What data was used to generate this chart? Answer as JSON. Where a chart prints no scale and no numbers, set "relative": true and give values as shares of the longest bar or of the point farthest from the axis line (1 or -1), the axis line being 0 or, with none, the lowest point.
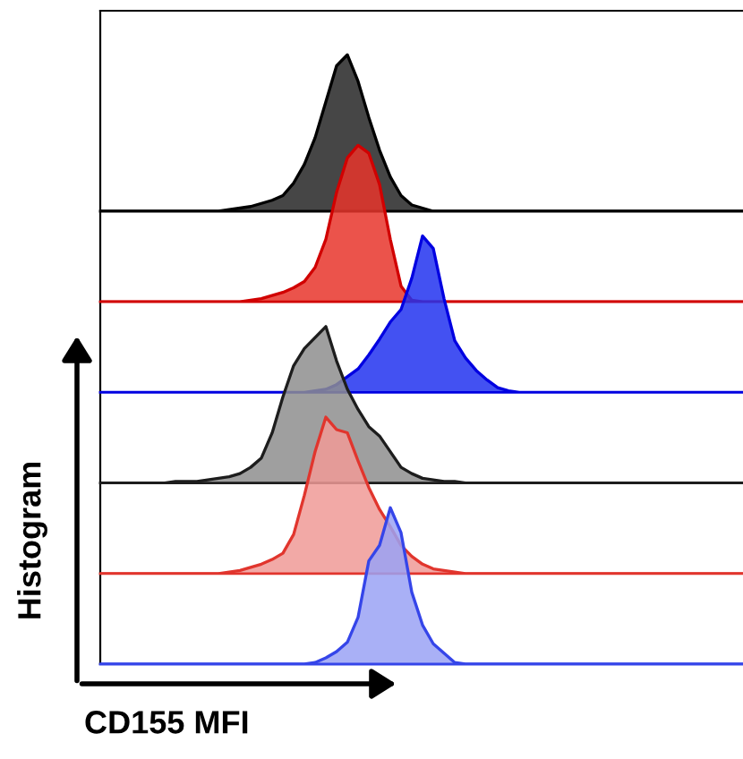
{
  "chart_data": [
    {
      "type": "area",
      "relative": true,
      "color": "#262626",
      "categories": [
        null,
        null,
        null,
        null,
        null,
        null,
        null,
        null,
        null,
        null,
        null,
        null,
        null,
        null,
        null,
        null,
        null,
        null,
        null,
        null,
        null,
        null,
        null,
        null,
        null,
        null,
        null,
        null,
        null,
        null,
        null,
        null,
        null,
        null,
        null,
        null,
        null,
        null,
        null,
        null,
        null,
        null,
        null,
        null,
        null,
        null,
        null,
        null,
        null,
        null,
        null,
        null,
        null,
        null,
        null,
        null,
        null,
        null,
        null,
        null,
        null
      ],
      "values": [
        0,
        0,
        0,
        0,
        0,
        0,
        0,
        0,
        0,
        0,
        0,
        0,
        0.01,
        0.02,
        0.03,
        0.05,
        0.07,
        0.1,
        0.18,
        0.3,
        0.47,
        0.7,
        0.93,
        1,
        0.83,
        0.6,
        0.39,
        0.22,
        0.1,
        0.04,
        0.02,
        0,
        0,
        0,
        0,
        0,
        0,
        0,
        0,
        0,
        0,
        0,
        0,
        0,
        0,
        0,
        0,
        0,
        0,
        0,
        0,
        0,
        0,
        0,
        0,
        0,
        0,
        0,
        0,
        0,
        0
      ]
    },
    {
      "type": "area",
      "relative": true,
      "color": "#e8352c",
      "categories": [
        null,
        null,
        null,
        null,
        null,
        null,
        null,
        null,
        null,
        null,
        null,
        null,
        null,
        null,
        null,
        null,
        null,
        null,
        null,
        null,
        null,
        null,
        null,
        null,
        null,
        null,
        null,
        null,
        null,
        null,
        null,
        null,
        null,
        null,
        null,
        null,
        null,
        null,
        null,
        null,
        null,
        null,
        null,
        null,
        null,
        null,
        null,
        null,
        null,
        null,
        null,
        null,
        null,
        null,
        null,
        null,
        null,
        null,
        null,
        null,
        null
      ],
      "values": [
        0,
        0,
        0,
        0,
        0,
        0,
        0,
        0,
        0,
        0,
        0,
        0,
        0,
        0,
        0.01,
        0.02,
        0.04,
        0.06,
        0.09,
        0.13,
        0.22,
        0.4,
        0.7,
        0.92,
        1,
        0.95,
        0.75,
        0.4,
        0.1,
        0.01,
        0,
        0,
        0,
        0,
        0,
        0,
        0,
        0,
        0,
        0,
        0,
        0,
        0,
        0,
        0,
        0,
        0,
        0,
        0,
        0,
        0,
        0,
        0,
        0,
        0,
        0,
        0,
        0,
        0,
        0,
        0
      ]
    },
    {
      "type": "area",
      "relative": true,
      "color": "#2233f0",
      "categories": [
        null,
        null,
        null,
        null,
        null,
        null,
        null,
        null,
        null,
        null,
        null,
        null,
        null,
        null,
        null,
        null,
        null,
        null,
        null,
        null,
        null,
        null,
        null,
        null,
        null,
        null,
        null,
        null,
        null,
        null,
        null,
        null,
        null,
        null,
        null,
        null,
        null,
        null,
        null,
        null,
        null,
        null,
        null,
        null,
        null,
        null,
        null,
        null,
        null,
        null,
        null,
        null,
        null,
        null,
        null,
        null,
        null,
        null,
        null,
        null,
        null
      ],
      "values": [
        0,
        0,
        0,
        0,
        0,
        0,
        0,
        0,
        0,
        0,
        0,
        0,
        0,
        0,
        0,
        0,
        0,
        0,
        0,
        0,
        0.01,
        0.02,
        0.05,
        0.1,
        0.15,
        0.24,
        0.34,
        0.45,
        0.53,
        0.73,
        1,
        0.92,
        0.6,
        0.33,
        0.22,
        0.14,
        0.08,
        0.03,
        0.01,
        0,
        0,
        0,
        0,
        0,
        0,
        0,
        0,
        0,
        0,
        0,
        0,
        0,
        0,
        0,
        0,
        0,
        0,
        0,
        0,
        0,
        0
      ]
    },
    {
      "type": "area",
      "relative": true,
      "color": "#8e8e8e",
      "categories": [
        null,
        null,
        null,
        null,
        null,
        null,
        null,
        null,
        null,
        null,
        null,
        null,
        null,
        null,
        null,
        null,
        null,
        null,
        null,
        null,
        null,
        null,
        null,
        null,
        null,
        null,
        null,
        null,
        null,
        null,
        null,
        null,
        null,
        null,
        null,
        null,
        null,
        null,
        null,
        null,
        null,
        null,
        null,
        null,
        null,
        null,
        null,
        null,
        null,
        null,
        null,
        null,
        null,
        null,
        null,
        null,
        null,
        null,
        null,
        null,
        null
      ],
      "values": [
        0,
        0,
        0,
        0,
        0,
        0,
        0,
        0.01,
        0.01,
        0.01,
        0.02,
        0.03,
        0.04,
        0.06,
        0.1,
        0.16,
        0.32,
        0.55,
        0.75,
        0.86,
        0.93,
        1,
        0.78,
        0.6,
        0.47,
        0.36,
        0.3,
        0.2,
        0.1,
        0.06,
        0.03,
        0.02,
        0.01,
        0.01,
        0,
        0,
        0,
        0,
        0,
        0,
        0,
        0,
        0,
        0,
        0,
        0,
        0,
        0,
        0,
        0,
        0,
        0,
        0,
        0,
        0,
        0,
        0,
        0,
        0,
        0,
        0
      ]
    },
    {
      "type": "area",
      "relative": true,
      "color": "#f09a96",
      "categories": [
        null,
        null,
        null,
        null,
        null,
        null,
        null,
        null,
        null,
        null,
        null,
        null,
        null,
        null,
        null,
        null,
        null,
        null,
        null,
        null,
        null,
        null,
        null,
        null,
        null,
        null,
        null,
        null,
        null,
        null,
        null,
        null,
        null,
        null,
        null,
        null,
        null,
        null,
        null,
        null,
        null,
        null,
        null,
        null,
        null,
        null,
        null,
        null,
        null,
        null,
        null,
        null,
        null,
        null,
        null,
        null,
        null,
        null,
        null,
        null,
        null
      ],
      "values": [
        0,
        0,
        0,
        0,
        0,
        0,
        0,
        0,
        0,
        0,
        0,
        0,
        0.01,
        0.02,
        0.04,
        0.06,
        0.09,
        0.13,
        0.25,
        0.5,
        0.78,
        1,
        0.92,
        0.9,
        0.72,
        0.55,
        0.41,
        0.3,
        0.18,
        0.11,
        0.06,
        0.03,
        0.02,
        0.01,
        0,
        0,
        0,
        0,
        0,
        0,
        0,
        0,
        0,
        0,
        0,
        0,
        0,
        0,
        0,
        0,
        0,
        0,
        0,
        0,
        0,
        0,
        0,
        0,
        0,
        0,
        0
      ]
    },
    {
      "type": "area",
      "relative": true,
      "color": "#9aa2f4",
      "xlabel": "CD155 MFI",
      "ylabel": "Histogram",
      "categories": [
        null,
        null,
        null,
        null,
        null,
        null,
        null,
        null,
        null,
        null,
        null,
        null,
        null,
        null,
        null,
        null,
        null,
        null,
        null,
        null,
        null,
        null,
        null,
        null,
        null,
        null,
        null,
        null,
        null,
        null,
        null,
        null,
        null,
        null,
        null,
        null,
        null,
        null,
        null,
        null,
        null,
        null,
        null,
        null,
        null,
        null,
        null,
        null,
        null,
        null,
        null,
        null,
        null,
        null,
        null,
        null,
        null,
        null,
        null,
        null,
        null
      ],
      "values": [
        0,
        0,
        0,
        0,
        0,
        0,
        0,
        0,
        0,
        0,
        0,
        0,
        0,
        0,
        0,
        0,
        0,
        0,
        0,
        0,
        0.01,
        0.04,
        0.08,
        0.14,
        0.3,
        0.66,
        0.76,
        1,
        0.84,
        0.46,
        0.25,
        0.13,
        0.07,
        0.01,
        0,
        0,
        0,
        0,
        0,
        0,
        0,
        0,
        0,
        0,
        0,
        0,
        0,
        0,
        0,
        0,
        0,
        0,
        0,
        0,
        0,
        0,
        0,
        0,
        0,
        0,
        0
      ]
    }
  ]
}
